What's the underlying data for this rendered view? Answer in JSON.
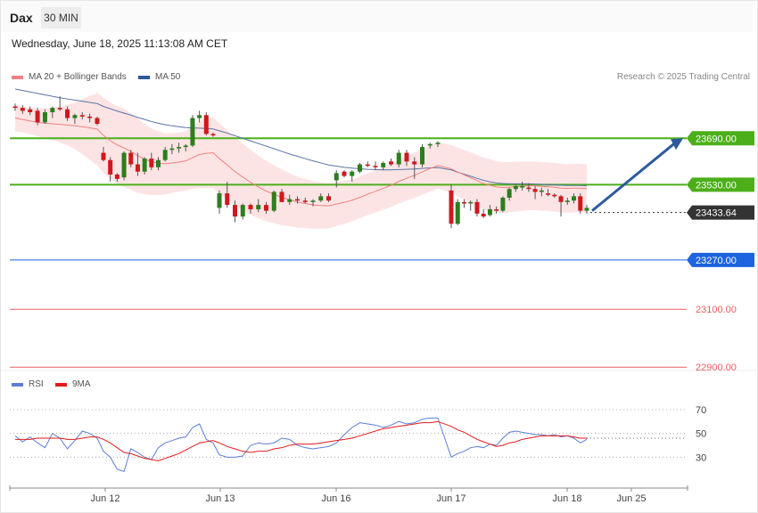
{
  "header": {
    "symbol": "Dax",
    "timeframe": "30 MIN"
  },
  "timestamp": "Wednesday, June 18, 2025 11:13:08 AM CET",
  "legend": {
    "ma20": {
      "label": "MA 20 + Bollinger Bands",
      "color": "#f08080"
    },
    "ma50": {
      "label": "MA 50",
      "color": "#2d5a9e"
    }
  },
  "copyright": "Research © 2025 Trading Central",
  "rsi_legend": {
    "rsi": {
      "label": "RSI",
      "color": "#5b7fd6"
    },
    "ma9": {
      "label": "9MA",
      "color": "#e31a1c"
    }
  },
  "chart_data": [
    {
      "type": "candlestick",
      "y_range": [
        22870,
        23860
      ],
      "x_axis": {
        "labels": [
          "Jun 12",
          "Jun 13",
          "Jun 16",
          "Jun 17",
          "Jun 18",
          "Jun 25"
        ]
      },
      "levels": [
        {
          "value": 23690.0,
          "label": "23690.00",
          "color": "#4caf1a",
          "style": "resistance"
        },
        {
          "value": 23530.0,
          "label": "23530.00",
          "color": "#4caf1a",
          "style": "resistance"
        },
        {
          "value": 23433.64,
          "label": "23433.64",
          "color": "#333333",
          "style": "last-price"
        },
        {
          "value": 23270.0,
          "label": "23270.00",
          "color": "#1e63e0",
          "style": "pivot"
        },
        {
          "value": 23100.0,
          "label": "23100.00",
          "color": "#e86060",
          "style": "support"
        },
        {
          "value": 22900.0,
          "label": "22900.00",
          "color": "#e86060",
          "style": "support"
        }
      ],
      "candles": [
        [
          23800,
          23810,
          23785,
          23795
        ],
        [
          23795,
          23805,
          23775,
          23785
        ],
        [
          23790,
          23800,
          23770,
          23780
        ],
        [
          23785,
          23795,
          23735,
          23745
        ],
        [
          23745,
          23790,
          23740,
          23780
        ],
        [
          23780,
          23800,
          23760,
          23795
        ],
        [
          23795,
          23835,
          23785,
          23790
        ],
        [
          23790,
          23800,
          23750,
          23760
        ],
        [
          23760,
          23775,
          23740,
          23770
        ],
        [
          23770,
          23780,
          23755,
          23765
        ],
        [
          23765,
          23775,
          23745,
          23760
        ],
        [
          23760,
          23765,
          23735,
          23740
        ],
        [
          23640,
          23660,
          23610,
          23615
        ],
        [
          23615,
          23625,
          23540,
          23565
        ],
        [
          23565,
          23570,
          23540,
          23550
        ],
        [
          23555,
          23645,
          23545,
          23640
        ],
        [
          23640,
          23650,
          23590,
          23600
        ],
        [
          23600,
          23640,
          23560,
          23575
        ],
        [
          23575,
          23625,
          23565,
          23620
        ],
        [
          23620,
          23640,
          23580,
          23590
        ],
        [
          23590,
          23625,
          23580,
          23615
        ],
        [
          23615,
          23660,
          23610,
          23650
        ],
        [
          23650,
          23670,
          23635,
          23655
        ],
        [
          23655,
          23675,
          23640,
          23660
        ],
        [
          23660,
          23670,
          23645,
          23665
        ],
        [
          23665,
          23770,
          23660,
          23760
        ],
        [
          23760,
          23785,
          23745,
          23770
        ],
        [
          23770,
          23780,
          23700,
          23705
        ],
        [
          23705,
          23710,
          23695,
          23700
        ],
        [
          23450,
          23510,
          23430,
          23500
        ],
        [
          23500,
          23540,
          23450,
          23460
        ],
        [
          23460,
          23475,
          23400,
          23420
        ],
        [
          23420,
          23465,
          23410,
          23460
        ],
        [
          23460,
          23465,
          23430,
          23445
        ],
        [
          23445,
          23480,
          23435,
          23460
        ],
        [
          23460,
          23470,
          23430,
          23440
        ],
        [
          23440,
          23510,
          23435,
          23505
        ],
        [
          23505,
          23515,
          23470,
          23470
        ],
        [
          23470,
          23495,
          23460,
          23480
        ],
        [
          23480,
          23490,
          23465,
          23475
        ],
        [
          23475,
          23485,
          23465,
          23470
        ],
        [
          23470,
          23480,
          23455,
          23475
        ],
        [
          23475,
          23500,
          23470,
          23490
        ],
        [
          23490,
          23500,
          23470,
          23475
        ],
        [
          23545,
          23580,
          23520,
          23570
        ],
        [
          23575,
          23580,
          23555,
          23560
        ],
        [
          23560,
          23580,
          23540,
          23575
        ],
        [
          23575,
          23605,
          23570,
          23600
        ],
        [
          23600,
          23610,
          23590,
          23595
        ],
        [
          23595,
          23610,
          23580,
          23590
        ],
        [
          23590,
          23610,
          23580,
          23605
        ],
        [
          23610,
          23620,
          23595,
          23600
        ],
        [
          23600,
          23650,
          23590,
          23640
        ],
        [
          23640,
          23650,
          23595,
          23610
        ],
        [
          23610,
          23625,
          23550,
          23600
        ],
        [
          23600,
          23670,
          23590,
          23660
        ],
        [
          23665,
          23675,
          23655,
          23670
        ],
        [
          23670,
          23680,
          23660,
          23675
        ],
        [
          23510,
          23530,
          23380,
          23395
        ],
        [
          23395,
          23480,
          23390,
          23470
        ],
        [
          23470,
          23480,
          23450,
          23465
        ],
        [
          23465,
          23475,
          23440,
          23470
        ],
        [
          23470,
          23480,
          23420,
          23430
        ],
        [
          23430,
          23445,
          23415,
          23420
        ],
        [
          23425,
          23460,
          23420,
          23445
        ],
        [
          23445,
          23455,
          23430,
          23440
        ],
        [
          23440,
          23490,
          23435,
          23485
        ],
        [
          23485,
          23520,
          23475,
          23515
        ],
        [
          23515,
          23530,
          23505,
          23525
        ],
        [
          23520,
          23540,
          23510,
          23525
        ],
        [
          23520,
          23535,
          23505,
          23515
        ],
        [
          23515,
          23525,
          23480,
          23505
        ],
        [
          23505,
          23520,
          23490,
          23510
        ],
        [
          23500,
          23515,
          23490,
          23495
        ],
        [
          23495,
          23500,
          23485,
          23490
        ],
        [
          23490,
          23495,
          23420,
          23470
        ],
        [
          23470,
          23485,
          23460,
          23475
        ],
        [
          23475,
          23500,
          23465,
          23490
        ],
        [
          23490,
          23500,
          23430,
          23440
        ],
        [
          23440,
          23460,
          23430,
          23450
        ]
      ],
      "ma20": [
        23760,
        23755,
        23750,
        23745,
        23742,
        23740,
        23738,
        23736,
        23733,
        23730,
        23726,
        23722,
        23700,
        23682,
        23667,
        23657,
        23645,
        23630,
        23618,
        23609,
        23604,
        23602,
        23605,
        23608,
        23612,
        23623,
        23634,
        23638,
        23640,
        23620,
        23598,
        23575,
        23556,
        23538,
        23522,
        23508,
        23497,
        23486,
        23478,
        23470,
        23465,
        23460,
        23458,
        23457,
        23463,
        23469,
        23476,
        23486,
        23497,
        23507,
        23517,
        23528,
        23541,
        23552,
        23562,
        23574,
        23586,
        23596,
        23585,
        23574,
        23564,
        23554,
        23544,
        23534,
        23528,
        23522,
        23520,
        23521,
        23523,
        23525,
        23526,
        23526,
        23524,
        23523,
        23521,
        23518,
        23517,
        23518,
        23518,
        23516
      ],
      "ma50": [
        23860,
        23855,
        23850,
        23845,
        23840,
        23835,
        23830,
        23826,
        23822,
        23818,
        23814,
        23810,
        23800,
        23792,
        23784,
        23777,
        23770,
        23762,
        23755,
        23748,
        23742,
        23737,
        23733,
        23730,
        23727,
        23726,
        23725,
        23724,
        23722,
        23716,
        23708,
        23699,
        23690,
        23681,
        23672,
        23663,
        23654,
        23645,
        23636,
        23628,
        23620,
        23612,
        23605,
        23598,
        23594,
        23590,
        23587,
        23585,
        23583,
        23582,
        23581,
        23581,
        23582,
        23583,
        23584,
        23586,
        23588,
        23589,
        23581,
        23573,
        23566,
        23559,
        23552,
        23545,
        23540,
        23536,
        23534,
        23533,
        23533,
        23533,
        23533,
        23532,
        23531,
        23530,
        23529,
        23528,
        23527,
        23527,
        23527,
        23526
      ],
      "bb_width": [
        45,
        45,
        46,
        48,
        52,
        56,
        62,
        70,
        80,
        95,
        110,
        125,
        130,
        132,
        134,
        135,
        132,
        128,
        122,
        115,
        110,
        106,
        103,
        102,
        102,
        108,
        115,
        120,
        122,
        122,
        120,
        118,
        116,
        112,
        108,
        104,
        100,
        96,
        92,
        88,
        85,
        82,
        80,
        78,
        76,
        74,
        72,
        72,
        72,
        73,
        74,
        75,
        76,
        77,
        78,
        79,
        80,
        80,
        82,
        84,
        86,
        88,
        89,
        90,
        90,
        89,
        88,
        87,
        86,
        85,
        84,
        84,
        84,
        84,
        84,
        84,
        84,
        84,
        84,
        84
      ],
      "forecast": {
        "from": 23440,
        "to": 23690
      }
    },
    {
      "type": "line",
      "name": "RSI",
      "y_range": [
        10,
        85
      ],
      "y_ticks": [
        "70",
        "50",
        "30"
      ],
      "y_tick_values": [
        70,
        50,
        30
      ],
      "rsi": [
        48,
        43,
        47,
        42,
        38,
        50,
        46,
        37,
        44,
        52,
        50,
        46,
        35,
        30,
        20,
        18,
        37,
        34,
        30,
        28,
        38,
        42,
        44,
        46,
        47,
        55,
        58,
        45,
        42,
        32,
        30,
        30,
        31,
        40,
        42,
        41,
        42,
        46,
        45,
        40,
        38,
        37,
        38,
        39,
        42,
        49,
        55,
        59,
        58,
        57,
        55,
        57,
        60,
        58,
        59,
        62,
        63,
        63,
        30,
        33,
        35,
        38,
        39,
        38,
        41,
        40,
        46,
        51,
        52,
        51,
        50,
        49,
        49,
        48,
        49,
        47,
        48,
        46,
        42,
        45
      ],
      "ma9": [
        45,
        45,
        45,
        46,
        46,
        46,
        46,
        45,
        45,
        46,
        47,
        47,
        45,
        42,
        38,
        34,
        33,
        31,
        29,
        28,
        27,
        29,
        31,
        33,
        36,
        39,
        42,
        43,
        44,
        42,
        39,
        37,
        35,
        34,
        35,
        35,
        37,
        38,
        40,
        41,
        41,
        41,
        42,
        43,
        44,
        45,
        46,
        48,
        50,
        52,
        54,
        55,
        56,
        57,
        58,
        59,
        59,
        60,
        56,
        53,
        51,
        48,
        45,
        43,
        41,
        39,
        40,
        42,
        43,
        45,
        46,
        47,
        48,
        48,
        48,
        48,
        48,
        47,
        46,
        46
      ]
    }
  ]
}
